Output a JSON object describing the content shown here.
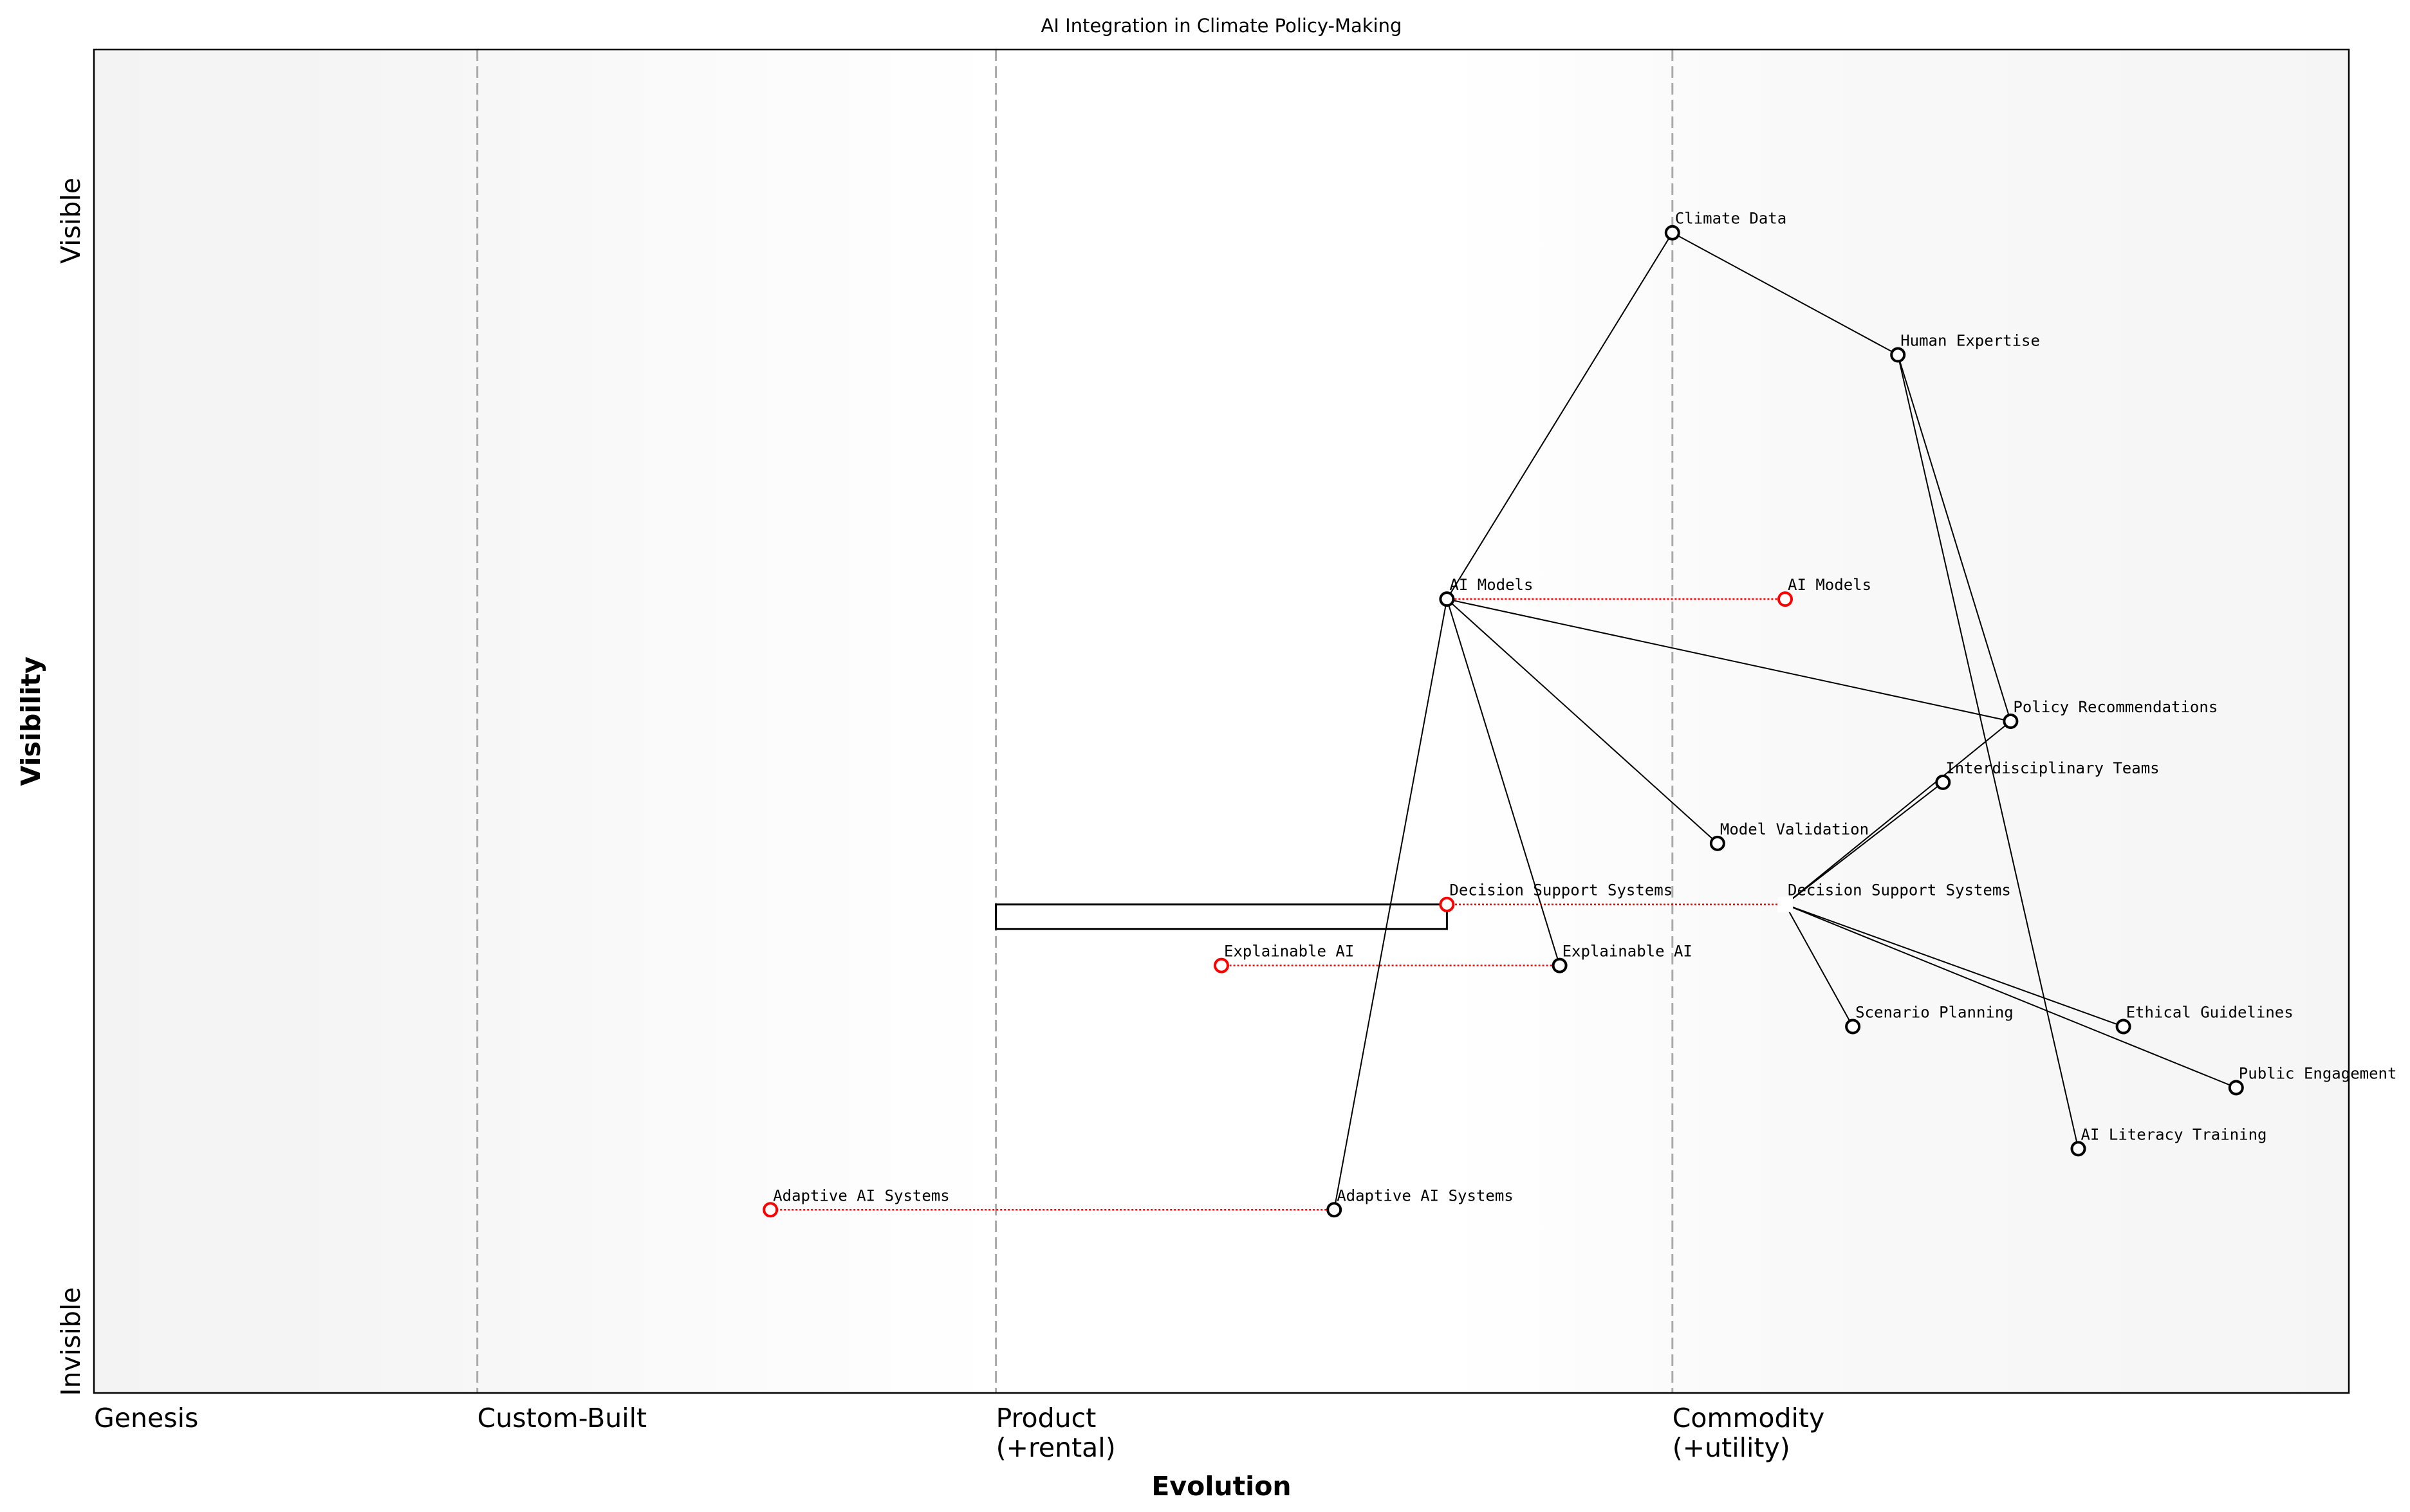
{
  "chart_data": {
    "type": "wardley-map",
    "title": "AI Integration in Climate Policy-Making",
    "xlabel": "Evolution",
    "ylabel": "Visibility",
    "xlim": [
      0,
      1
    ],
    "ylim": [
      0,
      1.1
    ],
    "x_ticks": [
      {
        "value": 0,
        "label": "Genesis"
      },
      {
        "value": 0.17,
        "label": "Custom-Built"
      },
      {
        "value": 0.4,
        "label": "Product\n(+rental)"
      },
      {
        "value": 0.7,
        "label": "Commodity\n(+utility)"
      }
    ],
    "y_ticks": [
      {
        "value": 0,
        "label": "Invisible"
      },
      {
        "value": 1,
        "label": "Visible"
      }
    ],
    "stage_lines": [
      0.17,
      0.4,
      0.7
    ],
    "components": [
      {
        "name": "Climate Data",
        "evolution": 0.7,
        "visibility": 0.95
      },
      {
        "name": "Human Expertise",
        "evolution": 0.8,
        "visibility": 0.85
      },
      {
        "name": "AI Models",
        "evolution": 0.6,
        "visibility": 0.65
      },
      {
        "name": "Policy Recommendations",
        "evolution": 0.85,
        "visibility": 0.55
      },
      {
        "name": "Interdisciplinary Teams",
        "evolution": 0.82,
        "visibility": 0.5
      },
      {
        "name": "Model Validation",
        "evolution": 0.72,
        "visibility": 0.45
      },
      {
        "name": "Decision Support Systems",
        "evolution": 0.75,
        "visibility": 0.4,
        "hidden_marker": true
      },
      {
        "name": "Explainable AI",
        "evolution": 0.65,
        "visibility": 0.35
      },
      {
        "name": "Scenario Planning",
        "evolution": 0.78,
        "visibility": 0.3
      },
      {
        "name": "Ethical Guidelines",
        "evolution": 0.9,
        "visibility": 0.3
      },
      {
        "name": "Public Engagement",
        "evolution": 0.95,
        "visibility": 0.25
      },
      {
        "name": "AI Literacy Training",
        "evolution": 0.88,
        "visibility": 0.2
      },
      {
        "name": "Adaptive AI Systems",
        "evolution": 0.55,
        "visibility": 0.15
      }
    ],
    "evolutions": [
      {
        "name": "AI Models",
        "from": 0.6,
        "to": 0.75,
        "visibility": 0.65
      },
      {
        "name": "Decision Support Systems",
        "from": 0.75,
        "to": 0.6,
        "visibility": 0.4
      },
      {
        "name": "Explainable AI",
        "from": 0.65,
        "to": 0.5,
        "visibility": 0.35
      },
      {
        "name": "Adaptive AI Systems",
        "from": 0.55,
        "to": 0.3,
        "visibility": 0.15
      }
    ],
    "links": [
      [
        "Climate Data",
        "Human Expertise"
      ],
      [
        "Climate Data",
        "AI Models"
      ],
      [
        "Human Expertise",
        "Policy Recommendations"
      ],
      [
        "Human Expertise",
        "AI Literacy Training"
      ],
      [
        "AI Models",
        "Policy Recommendations"
      ],
      [
        "AI Models",
        "Model Validation"
      ],
      [
        "AI Models",
        "Explainable AI"
      ],
      [
        "AI Models",
        "Adaptive AI Systems"
      ],
      [
        "Decision Support Systems",
        "Interdisciplinary Teams"
      ],
      [
        "Decision Support Systems",
        "Policy Recommendations"
      ],
      [
        "Decision Support Systems",
        "Scenario Planning"
      ],
      [
        "Decision Support Systems",
        "Ethical Guidelines"
      ],
      [
        "Decision Support Systems",
        "Public Engagement"
      ]
    ],
    "pipeline": {
      "name": "Decision Support Systems",
      "x_start": 0.4,
      "x_end": 0.6,
      "visibility": 0.4
    },
    "colors": {
      "component": "#000000",
      "evolved": "#ff0000",
      "stage_line": "#aaaaaa",
      "background_edge": "#f4f4f4"
    },
    "grid": false,
    "legend": "none"
  }
}
